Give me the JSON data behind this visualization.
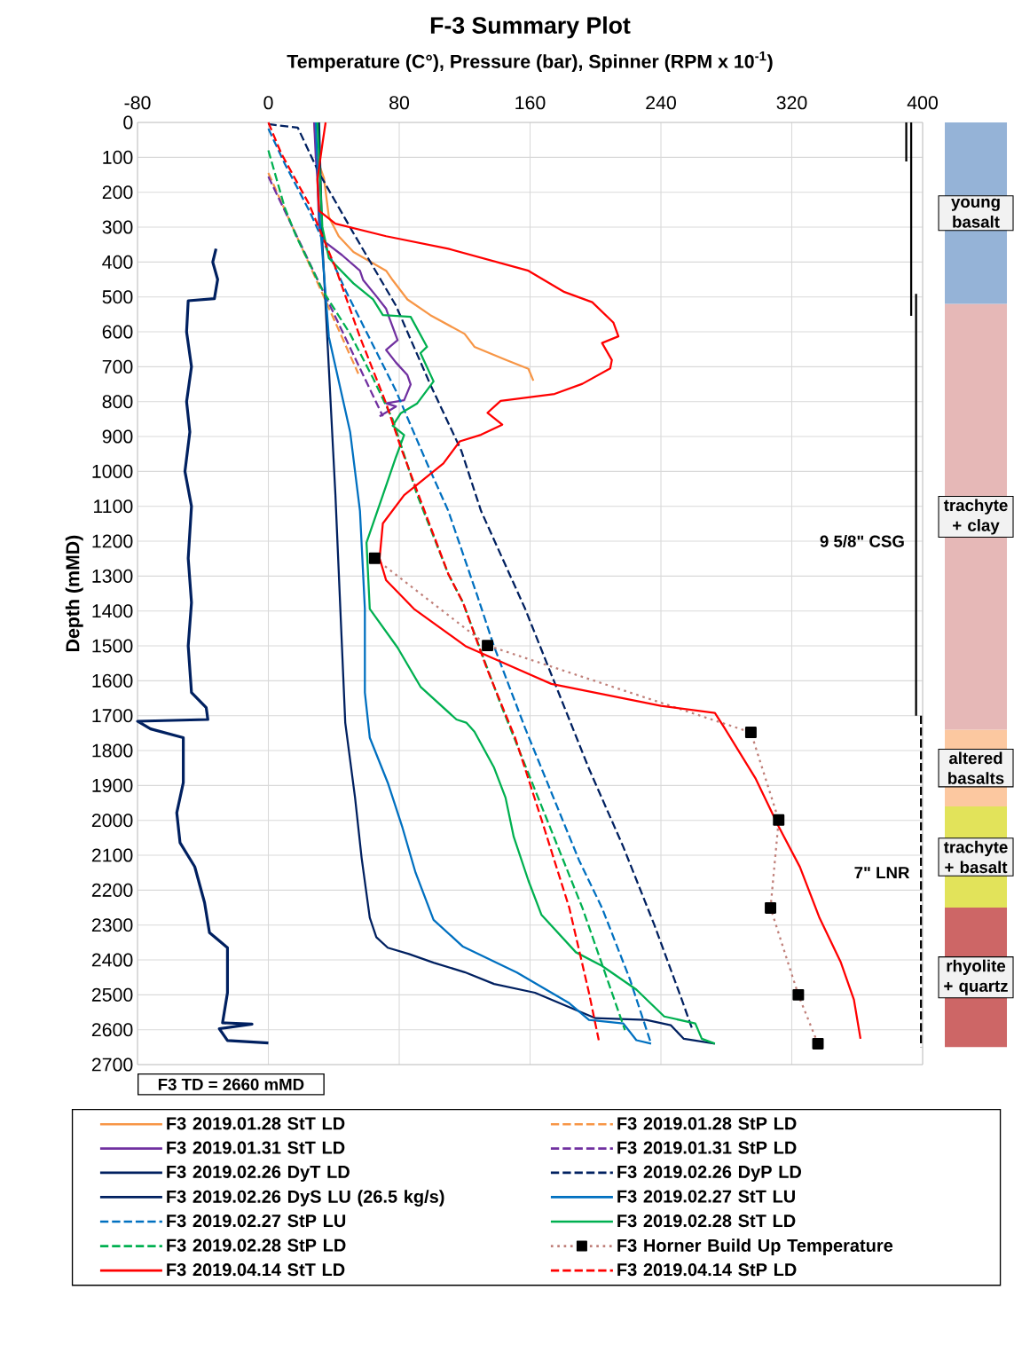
{
  "chart_data": [
    {
      "type": "line",
      "title": "F-3 Summary Plot",
      "xlabel": "Temperature  (C°), Pressure (bar), Spinner (RPM x 10$^{-1}$)",
      "ylabel": "Depth (mMD)",
      "xlim": [
        -80,
        400
      ],
      "xticks": [
        -80,
        0,
        80,
        160,
        240,
        320,
        400
      ],
      "ylim": [
        2700,
        0
      ],
      "yticks": [
        0,
        100,
        200,
        300,
        400,
        500,
        600,
        700,
        800,
        900,
        1000,
        1100,
        1200,
        1300,
        1400,
        1500,
        1600,
        1700,
        1800,
        1900,
        2000,
        2100,
        2200,
        2300,
        2400,
        2500,
        2600,
        2700
      ],
      "grid": true,
      "legend": "bottom",
      "annotations": [
        "F3 TD = 2660 mMD",
        {
          "text": "9 5/8\" CSG",
          "x": 396,
          "y": 1200
        },
        {
          "text": "7\" LNR",
          "x": 399,
          "y": 2150
        }
      ],
      "series": [
        {
          "name": "F3 2019.01.28 StT LD",
          "color": "#f79646",
          "line_style": "solid",
          "x": [
            28,
            29,
            31,
            34,
            37,
            43,
            52,
            72,
            76,
            85,
            99,
            120,
            126,
            145,
            159,
            162
          ],
          "values": [
            0,
            60,
            120,
            160,
            271,
            326,
            371,
            425,
            452,
            507,
            552,
            606,
            643,
            680,
            706,
            740
          ]
        },
        {
          "name": "F3 2019.01.28 StP LD",
          "color": "#f79646",
          "line_style": "dashed",
          "x": [
            0,
            55
          ],
          "values": [
            145,
            720
          ]
        },
        {
          "name": "F3 2019.01.31 StT LD",
          "color": "#7030a0",
          "line_style": "solid",
          "x": [
            28,
            29,
            30,
            31,
            35,
            45,
            56,
            58,
            66,
            72,
            74,
            79,
            72,
            78,
            85,
            87,
            83,
            72,
            78,
            68
          ],
          "values": [
            0,
            100,
            163,
            299,
            344,
            380,
            425,
            452,
            498,
            534,
            561,
            624,
            652,
            688,
            724,
            751,
            796,
            805,
            814,
            842
          ]
        },
        {
          "name": "F3 2019.01.31 StP LD",
          "color": "#7030a0",
          "line_style": "dashed",
          "x": [
            0,
            70
          ],
          "values": [
            155,
            842
          ]
        },
        {
          "name": "F3 2019.02.26 DyT LD",
          "color": "#002060",
          "line_style": "solid",
          "x": [
            31,
            33,
            37,
            41,
            44,
            47,
            53,
            57,
            62,
            66,
            73,
            86,
            101,
            120,
            138,
            163,
            200,
            231,
            246,
            254,
            273
          ],
          "values": [
            0,
            344,
            706,
            1068,
            1394,
            1720,
            1935,
            2107,
            2279,
            2335,
            2365,
            2383,
            2408,
            2435,
            2469,
            2494,
            2567,
            2572,
            2587,
            2626,
            2640
          ]
        },
        {
          "name": "F3 2019.02.26 DyP LD",
          "color": "#002060",
          "line_style": "dashed",
          "x": [
            0,
            18,
            31,
            52,
            78,
            99,
            118,
            130,
            157,
            177,
            196,
            217,
            236,
            252,
            259
          ],
          "values": [
            5,
            15,
            145,
            317,
            525,
            751,
            941,
            1113,
            1394,
            1629,
            1852,
            2076,
            2300,
            2504,
            2596
          ]
        },
        {
          "name": "F3 2019.02.26 DyS LU (26.5 kg/s)",
          "color": "#002060",
          "line_style": "solid",
          "x": [
            -32,
            -34,
            -31,
            -33,
            -49,
            -50,
            -47,
            -50,
            -48,
            -51,
            -47,
            -49,
            -47,
            -49,
            -47,
            -38,
            -37,
            -80,
            -72,
            -52,
            -52,
            -56,
            -54,
            -45,
            -39,
            -36,
            -25,
            -25,
            -28,
            -10,
            -30,
            -25,
            0
          ],
          "values": [
            362,
            400,
            450,
            505,
            511,
            600,
            700,
            800,
            887,
            1000,
            1100,
            1249,
            1376,
            1500,
            1634,
            1677,
            1711,
            1716,
            1738,
            1763,
            1892,
            1978,
            2064,
            2133,
            2236,
            2322,
            2365,
            2494,
            2580,
            2584,
            2597,
            2631,
            2638
          ]
        },
        {
          "name": "F3 2019.02.27 StT LU",
          "color": "#0070c0",
          "line_style": "solid",
          "x": [
            29,
            31,
            37,
            50,
            56,
            59,
            59,
            62,
            73,
            82,
            90,
            101,
            119,
            152,
            184,
            196,
            217,
            225,
            234
          ],
          "values": [
            0,
            253,
            615,
            887,
            1113,
            1394,
            1634,
            1763,
            1892,
            2021,
            2150,
            2285,
            2362,
            2436,
            2524,
            2572,
            2582,
            2630,
            2640
          ]
        },
        {
          "name": "F3 2019.02.27 StP LU",
          "color": "#0070c0",
          "line_style": "dashed",
          "x": [
            0,
            10,
            25,
            48,
            78,
            97,
            110,
            128,
            138,
            157,
            173,
            190,
            204,
            221,
            234
          ],
          "values": [
            18,
            118,
            253,
            489,
            769,
            977,
            1113,
            1360,
            1502,
            1736,
            1920,
            2115,
            2251,
            2455,
            2640
          ]
        },
        {
          "name": "F3 2019.02.28 StT LD",
          "color": "#00b050",
          "line_style": "solid",
          "x": [
            30,
            33,
            37,
            52,
            64,
            70,
            87,
            97,
            93,
            101,
            91,
            81,
            76,
            83,
            78,
            70,
            60,
            62,
            79,
            93,
            115,
            121,
            126,
            138,
            145,
            150,
            159,
            167,
            188,
            204,
            225,
            242,
            261,
            265,
            273
          ],
          "values": [
            0,
            299,
            389,
            461,
            507,
            552,
            557,
            643,
            661,
            742,
            805,
            833,
            869,
            896,
            959,
            1068,
            1204,
            1394,
            1505,
            1617,
            1711,
            1720,
            1746,
            1849,
            1935,
            2047,
            2173,
            2271,
            2378,
            2417,
            2485,
            2562,
            2582,
            2626,
            2640
          ]
        },
        {
          "name": "F3 2019.02.28 StP LD",
          "color": "#00b050",
          "line_style": "dashed",
          "x": [
            0,
            10,
            17,
            33,
            50,
            64,
            76,
            91,
            110,
            119,
            142,
            167,
            192,
            218
          ],
          "values": [
            80,
            244,
            326,
            480,
            606,
            733,
            851,
            1068,
            1294,
            1376,
            1667,
            1959,
            2251,
            2601
          ]
        },
        {
          "name": "F3 Horner Build Up Temperature",
          "color": "#c0807a",
          "line_style": "dotted",
          "marker": "square",
          "x": [
            65,
            134,
            295,
            312,
            307,
            324,
            336
          ],
          "values": [
            1249,
            1499,
            1748,
            1999,
            2251,
            2500,
            2640
          ]
        },
        {
          "name": "F3 2019.04.14 StT LD",
          "color": "#ff0000",
          "line_style": "solid",
          "x": [
            35,
            33,
            30,
            31,
            41,
            72,
            110,
            159,
            181,
            198,
            211,
            214,
            204,
            210,
            209,
            192,
            175,
            142,
            134,
            143,
            130,
            117,
            107,
            83,
            70,
            68,
            72,
            89,
            121,
            173,
            240,
            273,
            279,
            298,
            312,
            325,
            337,
            350,
            358,
            362
          ],
          "values": [
            0,
            63,
            163,
            253,
            290,
            326,
            362,
            425,
            486,
            515,
            574,
            613,
            632,
            681,
            705,
            749,
            778,
            798,
            832,
            866,
            895,
            914,
            977,
            1068,
            1149,
            1249,
            1312,
            1394,
            1502,
            1609,
            1672,
            1692,
            1736,
            1881,
            2018,
            2134,
            2280,
            2407,
            2514,
            2626
          ]
        },
        {
          "name": "F3 2019.04.14 StP LD",
          "color": "#ff0000",
          "line_style": "dashed",
          "x": [
            0,
            8,
            25,
            41,
            56,
            72,
            81,
            110,
            119,
            134,
            151,
            167,
            184,
            196,
            202
          ],
          "values": [
            0,
            90,
            235,
            416,
            615,
            805,
            932,
            1294,
            1376,
            1570,
            1765,
            1998,
            2251,
            2494,
            2630
          ]
        },
        {
          "color": "#000000",
          "line_style": "solid",
          "x": [
            390,
            390,
            null,
            393,
            393,
            null,
            396,
            396
          ],
          "values": [
            0,
            112,
            null,
            0,
            554,
            null,
            491,
            1700
          ]
        },
        {
          "color": "#000000",
          "line_style": "dashed",
          "x": [
            399,
            399
          ],
          "values": [
            1700,
            2650
          ]
        }
      ]
    },
    {
      "type": "bar",
      "stacked": true,
      "categories": [
        null
      ],
      "ylim": [
        2700,
        0
      ],
      "tick_labels": false,
      "series": [
        {
          "name": "young basalt",
          "color": "#95b3d7",
          "values": [
            520
          ]
        },
        {
          "name": "trachyte + clay",
          "color": "#e6b8b7",
          "values": [
            1220
          ]
        },
        {
          "name": "altered basalts",
          "color": "#fcc8a0",
          "values": [
            220
          ]
        },
        {
          "name": "trachyte + basalt",
          "color": "#e2e35a",
          "values": [
            290
          ]
        },
        {
          "name": "rhyolite + quartz",
          "color": "#cd6666",
          "values": [
            400
          ]
        }
      ]
    }
  ]
}
